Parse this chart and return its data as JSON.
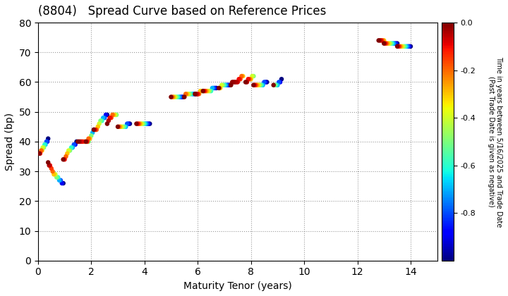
{
  "title": "(8804)   Spread Curve based on Reference Prices",
  "xlabel": "Maturity Tenor (years)",
  "ylabel": "Spread (bp)",
  "colorbar_label": "Time in years between 5/16/2025 and Trade Date\n(Past Trade Date is given as negative)",
  "xlim": [
    0,
    15
  ],
  "ylim": [
    0,
    80
  ],
  "xticks": [
    0,
    2,
    4,
    6,
    8,
    10,
    12,
    14
  ],
  "yticks": [
    0,
    10,
    20,
    30,
    40,
    50,
    60,
    70,
    80
  ],
  "cmap": "jet",
  "clim": [
    -1.0,
    0.0
  ],
  "cticks": [
    0.0,
    -0.2,
    -0.4,
    -0.6,
    -0.8
  ],
  "point_size": 22,
  "bonds": [
    {
      "x": [
        0.38,
        0.35,
        0.32,
        0.28,
        0.25,
        0.22,
        0.18,
        0.15,
        0.12,
        0.08,
        0.05
      ],
      "y": [
        41,
        40,
        40,
        39,
        39,
        38,
        38,
        37,
        37,
        36,
        36
      ],
      "c": [
        -1.0,
        -0.9,
        -0.8,
        -0.7,
        -0.6,
        -0.5,
        -0.4,
        -0.3,
        -0.2,
        -0.1,
        0.0
      ]
    },
    {
      "x": [
        0.95,
        0.9,
        0.85,
        0.8,
        0.75,
        0.7,
        0.65,
        0.6,
        0.55,
        0.5,
        0.45,
        0.42,
        0.38
      ],
      "y": [
        26,
        26,
        27,
        27,
        28,
        28,
        29,
        29,
        30,
        31,
        32,
        32,
        33
      ],
      "c": [
        -1.0,
        -0.9,
        -0.8,
        -0.7,
        -0.6,
        -0.5,
        -0.4,
        -0.3,
        -0.2,
        -0.15,
        -0.1,
        -0.05,
        0.0
      ]
    },
    {
      "x": [
        1.45,
        1.4,
        1.35,
        1.3,
        1.25,
        1.2,
        1.15,
        1.1,
        1.05,
        1.0,
        0.95
      ],
      "y": [
        40,
        39,
        39,
        38,
        38,
        37,
        37,
        36,
        35,
        34,
        34
      ],
      "c": [
        -1.0,
        -0.9,
        -0.8,
        -0.7,
        -0.6,
        -0.5,
        -0.4,
        -0.3,
        -0.2,
        -0.1,
        0.0
      ]
    },
    {
      "x": [
        1.9,
        1.85,
        1.8,
        1.75,
        1.7,
        1.65,
        1.6,
        1.55,
        1.5
      ],
      "y": [
        40,
        40,
        40,
        40,
        40,
        40,
        40,
        40,
        40
      ],
      "c": [
        -0.5,
        -0.4,
        -0.3,
        -0.2,
        -0.15,
        -0.1,
        -0.07,
        -0.03,
        0.0
      ]
    },
    {
      "x": [
        2.1,
        2.05,
        2.0,
        1.95,
        1.9,
        1.85,
        1.8
      ],
      "y": [
        44,
        43,
        42,
        41,
        41,
        40,
        40
      ],
      "c": [
        -0.9,
        -0.7,
        -0.5,
        -0.3,
        -0.2,
        -0.1,
        0.0
      ]
    },
    {
      "x": [
        2.6,
        2.55,
        2.5,
        2.45,
        2.4,
        2.35,
        2.3,
        2.25,
        2.2,
        2.15,
        2.1
      ],
      "y": [
        49,
        49,
        48,
        48,
        47,
        47,
        46,
        45,
        44,
        44,
        44
      ],
      "c": [
        -1.0,
        -0.9,
        -0.8,
        -0.7,
        -0.6,
        -0.5,
        -0.4,
        -0.3,
        -0.2,
        -0.1,
        0.0
      ]
    },
    {
      "x": [
        2.95,
        2.9,
        2.85,
        2.8,
        2.75,
        2.7,
        2.65,
        2.6
      ],
      "y": [
        49,
        49,
        49,
        49,
        48,
        48,
        47,
        46
      ],
      "c": [
        -0.5,
        -0.4,
        -0.3,
        -0.2,
        -0.15,
        -0.1,
        -0.05,
        0.0
      ]
    },
    {
      "x": [
        3.45,
        3.4,
        3.35,
        3.3,
        3.25,
        3.2,
        3.15,
        3.1,
        3.05,
        3.0
      ],
      "y": [
        46,
        46,
        46,
        45,
        45,
        45,
        45,
        45,
        45,
        45
      ],
      "c": [
        -1.0,
        -0.9,
        -0.8,
        -0.7,
        -0.6,
        -0.5,
        -0.4,
        -0.3,
        -0.2,
        0.0
      ]
    },
    {
      "x": [
        4.2,
        4.15,
        4.1,
        4.05,
        4.0,
        3.95,
        3.9,
        3.85,
        3.8,
        3.75,
        3.7
      ],
      "y": [
        46,
        46,
        46,
        46,
        46,
        46,
        46,
        46,
        46,
        46,
        46
      ],
      "c": [
        -1.0,
        -0.9,
        -0.8,
        -0.7,
        -0.6,
        -0.5,
        -0.4,
        -0.3,
        -0.2,
        -0.1,
        0.0
      ]
    },
    {
      "x": [
        5.45,
        5.4,
        5.35,
        5.3,
        5.25,
        5.2,
        5.15,
        5.1,
        5.05,
        5.0
      ],
      "y": [
        55,
        55,
        55,
        55,
        55,
        55,
        55,
        55,
        55,
        55
      ],
      "c": [
        -1.0,
        -0.9,
        -0.8,
        -0.7,
        -0.6,
        -0.5,
        -0.4,
        -0.3,
        -0.2,
        0.0
      ]
    },
    {
      "x": [
        5.95,
        5.9,
        5.85,
        5.8,
        5.75,
        5.7,
        5.65,
        5.6,
        5.55,
        5.5
      ],
      "y": [
        56,
        56,
        56,
        56,
        56,
        56,
        56,
        56,
        56,
        55
      ],
      "c": [
        -1.0,
        -0.9,
        -0.8,
        -0.7,
        -0.6,
        -0.5,
        -0.4,
        -0.3,
        -0.2,
        0.0
      ]
    },
    {
      "x": [
        6.2,
        6.15,
        6.1,
        6.05,
        6.0,
        5.95,
        5.9
      ],
      "y": [
        57,
        57,
        57,
        56,
        56,
        56,
        56
      ],
      "c": [
        -0.5,
        -0.4,
        -0.3,
        -0.2,
        -0.1,
        -0.05,
        0.0
      ]
    },
    {
      "x": [
        6.7,
        6.65,
        6.6,
        6.55,
        6.5,
        6.45,
        6.4,
        6.35,
        6.3,
        6.25,
        6.2
      ],
      "y": [
        58,
        58,
        58,
        58,
        57,
        57,
        57,
        57,
        57,
        57,
        57
      ],
      "c": [
        -1.0,
        -0.9,
        -0.8,
        -0.7,
        -0.6,
        -0.5,
        -0.4,
        -0.3,
        -0.2,
        -0.1,
        0.0
      ]
    },
    {
      "x": [
        7.2,
        7.15,
        7.1,
        7.05,
        7.0,
        6.95,
        6.9,
        6.85,
        6.8
      ],
      "y": [
        59,
        59,
        59,
        59,
        59,
        59,
        59,
        58,
        58
      ],
      "c": [
        -1.0,
        -0.9,
        -0.8,
        -0.7,
        -0.6,
        -0.5,
        -0.4,
        -0.3,
        0.0
      ]
    },
    {
      "x": [
        7.7,
        7.65,
        7.6,
        7.55,
        7.5,
        7.45,
        7.4,
        7.35,
        7.3,
        7.25
      ],
      "y": [
        62,
        62,
        61,
        61,
        60,
        60,
        60,
        60,
        60,
        59
      ],
      "c": [
        -0.3,
        -0.2,
        -0.15,
        -0.1,
        -0.07,
        -0.05,
        -0.04,
        -0.03,
        -0.02,
        0.0
      ]
    },
    {
      "x": [
        8.1,
        8.05,
        8.0,
        7.95,
        7.9,
        7.85,
        7.8
      ],
      "y": [
        62,
        62,
        61,
        61,
        61,
        60,
        60
      ],
      "c": [
        -0.5,
        -0.4,
        -0.3,
        -0.2,
        -0.1,
        -0.05,
        0.0
      ]
    },
    {
      "x": [
        8.6,
        8.55,
        8.5,
        8.45,
        8.4,
        8.35,
        8.3,
        8.25,
        8.2,
        8.15,
        8.1
      ],
      "y": [
        60,
        60,
        60,
        59,
        59,
        59,
        59,
        59,
        59,
        59,
        59
      ],
      "c": [
        -1.0,
        -0.9,
        -0.8,
        -0.7,
        -0.6,
        -0.5,
        -0.4,
        -0.3,
        -0.2,
        -0.1,
        0.0
      ]
    },
    {
      "x": [
        9.15,
        9.1,
        9.05,
        9.0,
        8.95,
        8.9,
        8.85
      ],
      "y": [
        61,
        60,
        60,
        59,
        59,
        59,
        59
      ],
      "c": [
        -1.0,
        -0.9,
        -0.8,
        -0.7,
        -0.6,
        -0.5,
        0.0
      ]
    },
    {
      "x": [
        13.0,
        12.95,
        12.9,
        12.85,
        12.8
      ],
      "y": [
        74,
        74,
        74,
        74,
        74
      ],
      "c": [
        -0.3,
        -0.2,
        -0.1,
        -0.05,
        0.0
      ]
    },
    {
      "x": [
        13.5,
        13.45,
        13.4,
        13.35,
        13.3,
        13.25,
        13.2,
        13.15,
        13.1,
        13.05,
        13.0
      ],
      "y": [
        73,
        73,
        73,
        73,
        73,
        73,
        73,
        73,
        73,
        73,
        73
      ],
      "c": [
        -1.0,
        -0.9,
        -0.8,
        -0.7,
        -0.6,
        -0.5,
        -0.4,
        -0.3,
        -0.2,
        -0.1,
        0.0
      ]
    },
    {
      "x": [
        14.0,
        13.95,
        13.9,
        13.85,
        13.8,
        13.75,
        13.7,
        13.65,
        13.6,
        13.55,
        13.5
      ],
      "y": [
        72,
        72,
        72,
        72,
        72,
        72,
        72,
        72,
        72,
        72,
        72
      ],
      "c": [
        -1.0,
        -0.9,
        -0.8,
        -0.7,
        -0.6,
        -0.5,
        -0.4,
        -0.3,
        -0.2,
        -0.1,
        0.0
      ]
    }
  ]
}
